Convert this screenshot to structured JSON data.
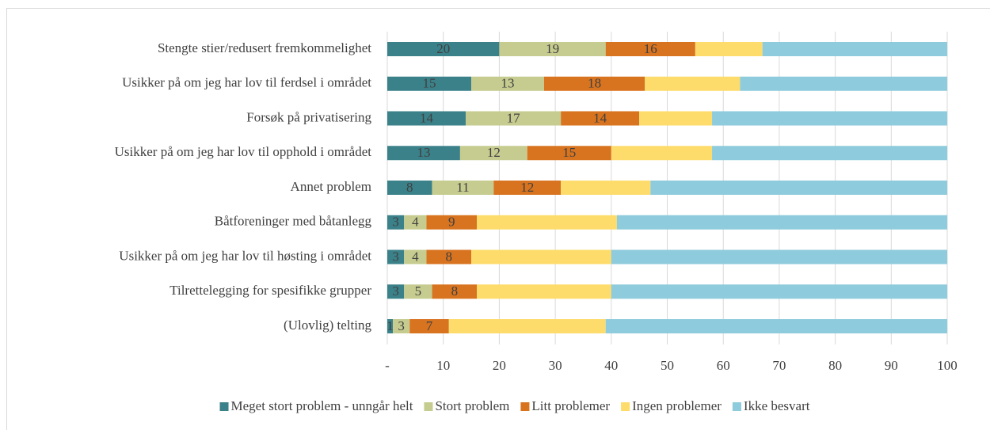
{
  "chart_data": {
    "type": "stacked_barh",
    "categories": [
      "Stengte stier/redusert fremkommelighet",
      "Usikker på om jeg har lov til ferdsel i området",
      "Forsøk på privatisering",
      "Usikker på om jeg har lov til opphold i området",
      "Annet problem",
      "Båtforeninger med båtanlegg",
      "Usikker på om jeg har lov til høsting i området",
      "Tilrettelegging for spesifikke grupper",
      "(Ulovlig) telting"
    ],
    "series": [
      {
        "name": "Meget stort problem - unngår helt",
        "color": "#3b8189",
        "data_labels": true,
        "values": [
          20,
          15,
          14,
          13,
          8,
          3,
          3,
          3,
          1
        ]
      },
      {
        "name": "Stort problem",
        "color": "#c6cc8f",
        "data_labels": true,
        "values": [
          19,
          13,
          17,
          12,
          11,
          4,
          4,
          5,
          3
        ]
      },
      {
        "name": "Litt problemer",
        "color": "#d8731f",
        "data_labels": true,
        "values": [
          16,
          18,
          14,
          15,
          12,
          9,
          8,
          8,
          7
        ]
      },
      {
        "name": "Ingen problemer",
        "color": "#fddc6b",
        "data_labels": false,
        "values": [
          12,
          17,
          13,
          18,
          16,
          25,
          25,
          24,
          28
        ]
      },
      {
        "name": "Ikke besvart",
        "color": "#8ecbdc",
        "data_labels": false,
        "values": [
          33,
          37,
          42,
          42,
          53,
          59,
          60,
          60,
          61
        ]
      }
    ],
    "xlim": [
      0,
      100
    ],
    "xticks": [
      {
        "value": 0,
        "label": "-"
      },
      10,
      20,
      30,
      40,
      50,
      60,
      70,
      80,
      90,
      100
    ],
    "grid": true,
    "legend": "bottom"
  }
}
